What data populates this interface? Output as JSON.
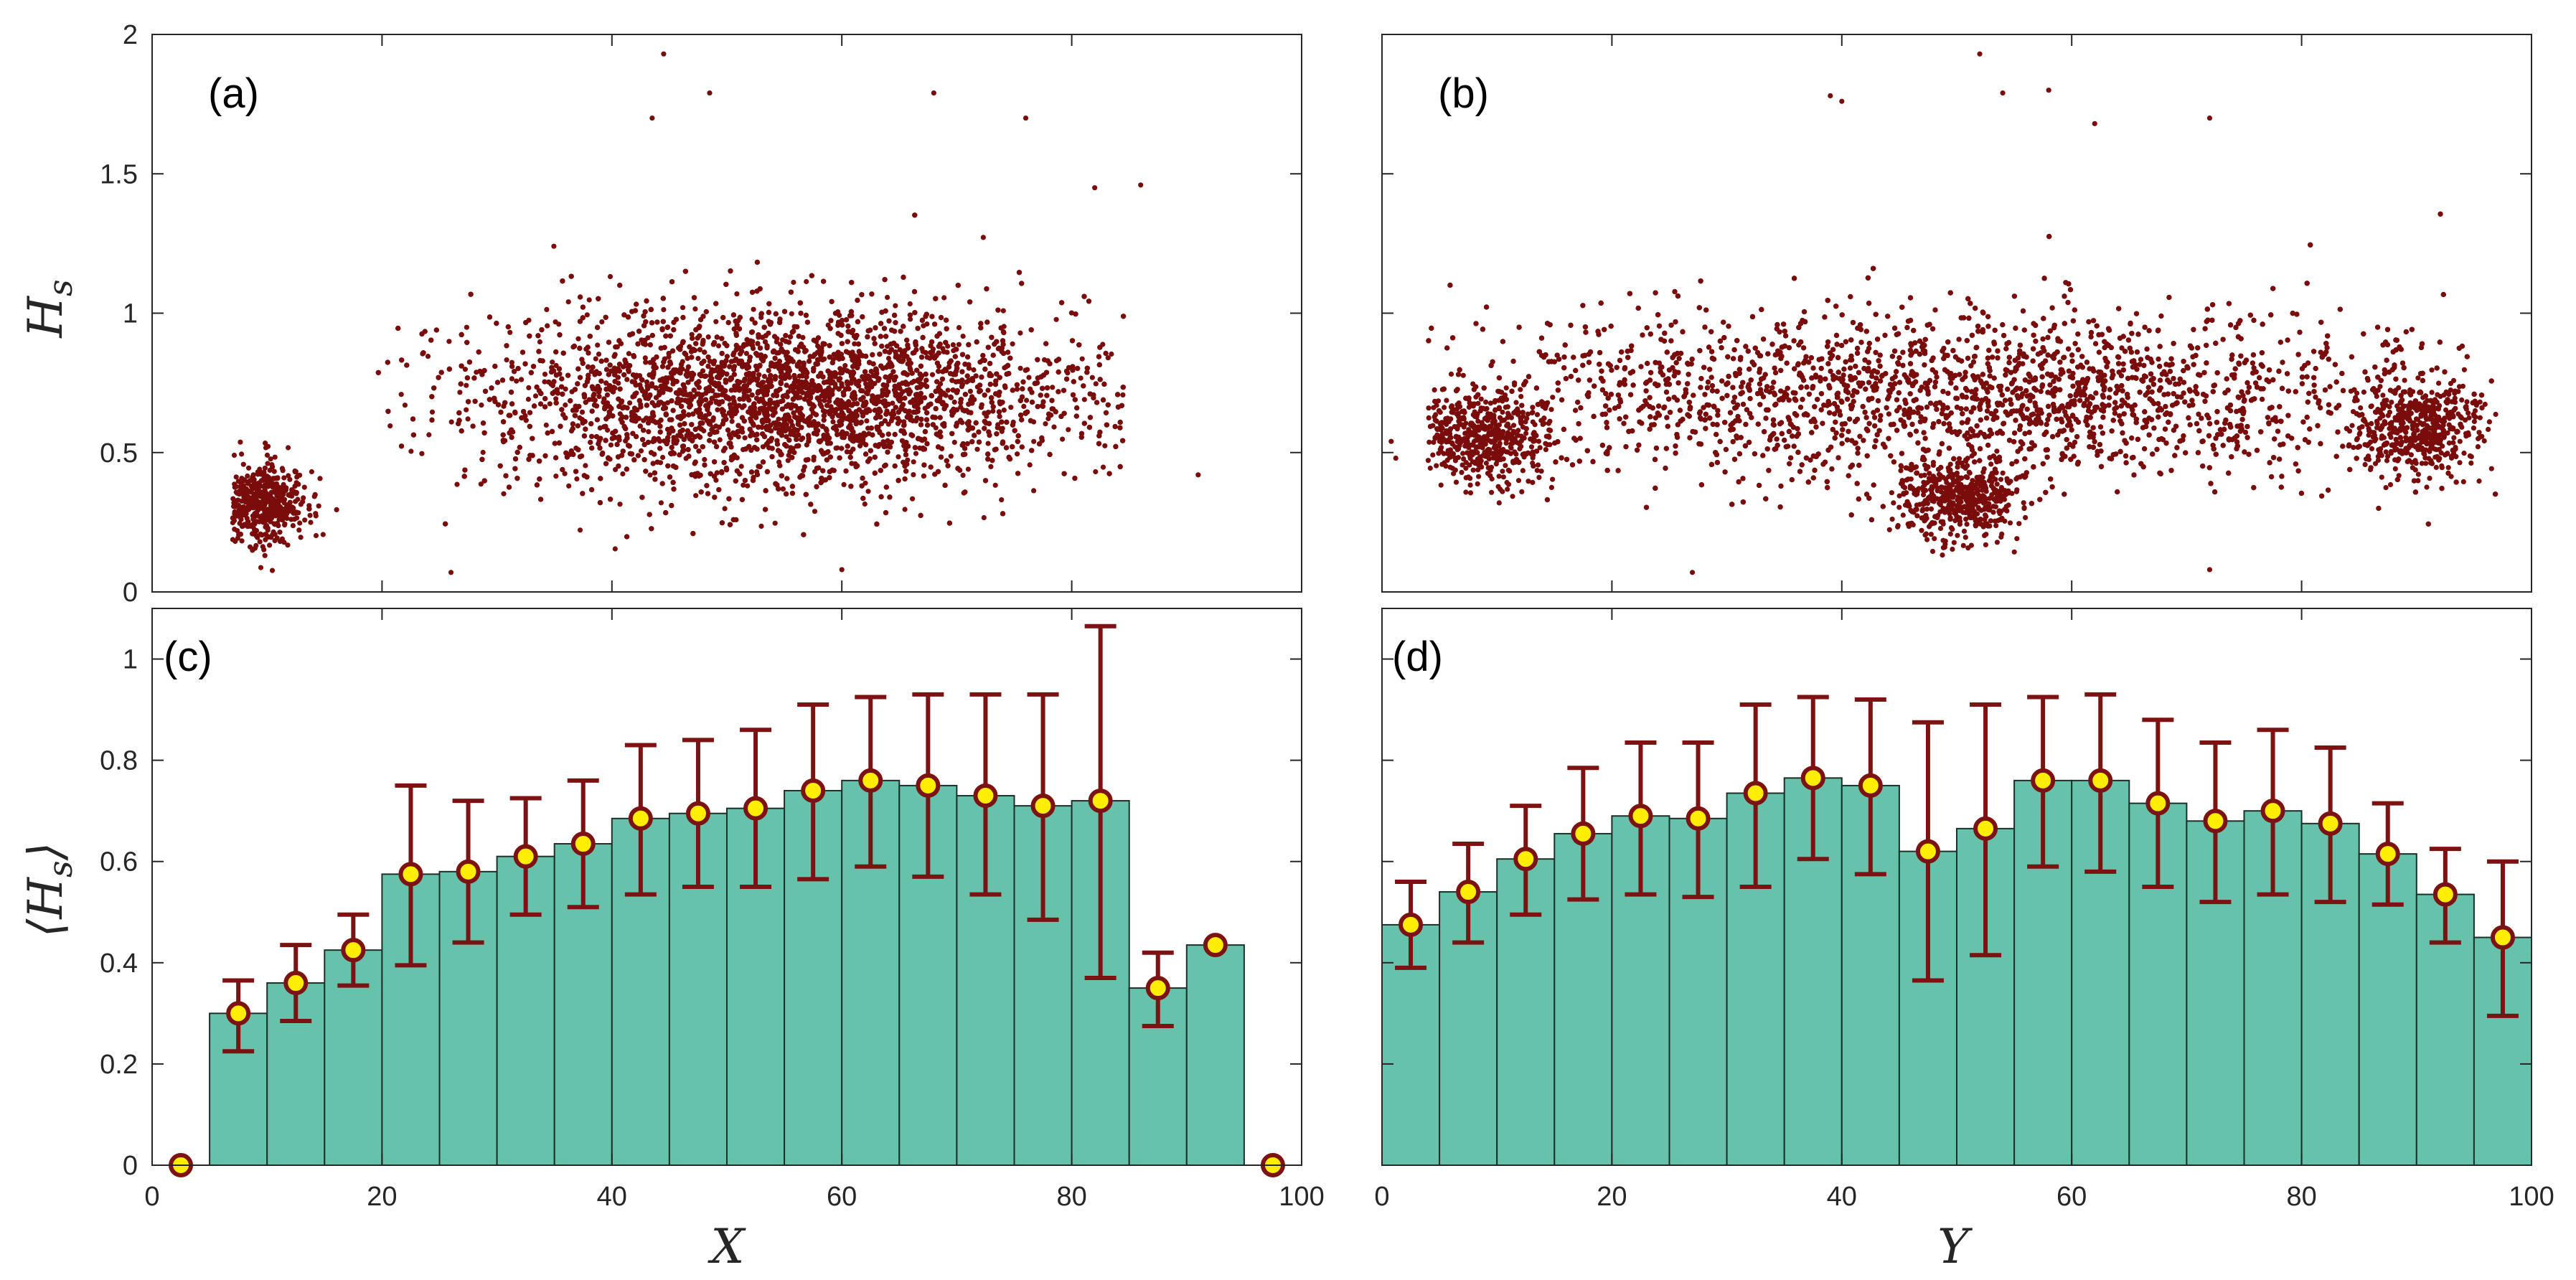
{
  "colors": {
    "scatter": "#7a0c0c",
    "bar_fill": "#66c2ab",
    "bar_edge": "#1e2f2a",
    "error_bar": "#7d1212",
    "marker_fill": "#ffee00",
    "marker_edge": "#7d1212",
    "axis": "#262626"
  },
  "labels": {
    "ylabel_top": "H",
    "ylabel_top_sub": "s",
    "ylabel_bottom_open": "⟨H",
    "ylabel_bottom_sub": "s",
    "ylabel_bottom_close": "⟩",
    "xlabel_left": "X",
    "xlabel_right": "Y"
  },
  "chart_data": [
    {
      "panel": "(a)",
      "type": "scatter",
      "xlim": [
        0,
        100
      ],
      "ylim": [
        0,
        2
      ],
      "yticks": [
        0,
        0.5,
        1,
        1.5,
        2
      ],
      "ytick_labels": [
        "0",
        "0.5",
        "1",
        "1.5",
        "2"
      ],
      "xticks": [
        0,
        20,
        40,
        60,
        80,
        100
      ],
      "clusters": [
        {
          "cx": 9.5,
          "cy": 0.32,
          "sx": 2.0,
          "sy": 0.07,
          "n": 500,
          "xmin": 7,
          "xmax": 17
        },
        {
          "cx": 55,
          "cy": 0.7,
          "sx": 13,
          "sy": 0.16,
          "n": 7000,
          "xmin": 19,
          "xmax": 85
        }
      ],
      "extra_points": [
        [
          44.5,
          1.93
        ],
        [
          43.5,
          1.7
        ],
        [
          48.5,
          1.79
        ],
        [
          76,
          1.7
        ],
        [
          68,
          1.79
        ],
        [
          82,
          1.45
        ],
        [
          86,
          1.46
        ],
        [
          60,
          0.08
        ],
        [
          26,
          0.07
        ],
        [
          91,
          0.42
        ],
        [
          22,
          0.67
        ]
      ]
    },
    {
      "panel": "(b)",
      "type": "scatter",
      "xlim": [
        0,
        100
      ],
      "ylim": [
        0,
        2
      ],
      "yticks": [
        0,
        0.5,
        1,
        1.5,
        2
      ],
      "xticks": [
        0,
        20,
        40,
        60,
        80,
        100
      ],
      "clusters": [
        {
          "cx": 50,
          "cy": 0.7,
          "sx": 22,
          "sy": 0.15,
          "n": 7000,
          "xmin": 4,
          "xmax": 97
        },
        {
          "cx": 50,
          "cy": 0.33,
          "sx": 3.0,
          "sy": 0.07,
          "n": 500,
          "xmin": 44,
          "xmax": 56
        },
        {
          "cx": 9,
          "cy": 0.55,
          "sx": 3,
          "sy": 0.08,
          "n": 500,
          "xmin": 4,
          "xmax": 15
        },
        {
          "cx": 90,
          "cy": 0.58,
          "sx": 3,
          "sy": 0.08,
          "n": 500,
          "xmin": 84,
          "xmax": 97
        }
      ],
      "extra_points": [
        [
          52,
          1.93
        ],
        [
          39,
          1.78
        ],
        [
          40,
          1.76
        ],
        [
          54,
          1.79
        ],
        [
          58,
          1.8
        ],
        [
          62,
          1.68
        ],
        [
          72,
          1.7
        ],
        [
          27,
          0.07
        ],
        [
          72,
          0.08
        ],
        [
          0.8,
          0.54
        ],
        [
          1.2,
          0.48
        ]
      ]
    },
    {
      "panel": "(c)",
      "type": "bar",
      "xlabel": "X",
      "xlim": [
        0,
        100
      ],
      "ylim": [
        0,
        1.1
      ],
      "yticks": [
        0,
        0.2,
        0.4,
        0.6,
        0.8,
        1
      ],
      "ytick_labels": [
        "0",
        "0.2",
        "0.4",
        "0.6",
        "0.8",
        "1"
      ],
      "xticks": [
        0,
        20,
        40,
        60,
        80,
        100
      ],
      "xtick_labels": [
        "0",
        "20",
        "40",
        "60",
        "80",
        "100"
      ],
      "bin_width": 5,
      "x": [
        2.5,
        7.5,
        12.5,
        17.5,
        22.5,
        27.5,
        32.5,
        37.5,
        42.5,
        47.5,
        52.5,
        57.5,
        62.5,
        67.5,
        72.5,
        77.5,
        82.5,
        87.5,
        92.5,
        97.5
      ],
      "values": [
        0,
        0.3,
        0.36,
        0.425,
        0.575,
        0.58,
        0.61,
        0.635,
        0.685,
        0.695,
        0.705,
        0.74,
        0.76,
        0.75,
        0.73,
        0.71,
        0.72,
        0.35,
        0.435,
        0
      ],
      "err_low": [
        0,
        0.225,
        0.285,
        0.355,
        0.395,
        0.44,
        0.495,
        0.51,
        0.535,
        0.55,
        0.55,
        0.565,
        0.59,
        0.57,
        0.535,
        0.485,
        0.37,
        0.275,
        0.435,
        0
      ],
      "err_high": [
        0,
        0.365,
        0.435,
        0.495,
        0.75,
        0.72,
        0.725,
        0.76,
        0.83,
        0.84,
        0.86,
        0.91,
        0.925,
        0.93,
        0.93,
        0.93,
        1.065,
        0.42,
        0.435,
        0
      ]
    },
    {
      "panel": "(d)",
      "type": "bar",
      "xlabel": "Y",
      "xlim": [
        0,
        100
      ],
      "ylim": [
        0,
        1.1
      ],
      "yticks": [
        0,
        0.2,
        0.4,
        0.6,
        0.8,
        1
      ],
      "xticks": [
        0,
        20,
        40,
        60,
        80,
        100
      ],
      "xtick_labels": [
        "0",
        "20",
        "40",
        "60",
        "80",
        "100"
      ],
      "bin_width": 5,
      "x": [
        2.5,
        7.5,
        12.5,
        17.5,
        22.5,
        27.5,
        32.5,
        37.5,
        42.5,
        47.5,
        52.5,
        57.5,
        62.5,
        67.5,
        72.5,
        77.5,
        82.5,
        87.5,
        92.5,
        97.5
      ],
      "values": [
        0.475,
        0.54,
        0.605,
        0.655,
        0.69,
        0.685,
        0.735,
        0.765,
        0.75,
        0.62,
        0.665,
        0.76,
        0.76,
        0.715,
        0.68,
        0.7,
        0.675,
        0.615,
        0.535,
        0.45
      ],
      "err_low": [
        0.39,
        0.44,
        0.495,
        0.525,
        0.535,
        0.53,
        0.55,
        0.605,
        0.575,
        0.365,
        0.415,
        0.59,
        0.58,
        0.55,
        0.52,
        0.535,
        0.52,
        0.515,
        0.44,
        0.295
      ],
      "err_high": [
        0.56,
        0.635,
        0.71,
        0.785,
        0.835,
        0.835,
        0.91,
        0.925,
        0.92,
        0.875,
        0.91,
        0.925,
        0.93,
        0.88,
        0.835,
        0.86,
        0.825,
        0.715,
        0.625,
        0.6
      ]
    }
  ]
}
